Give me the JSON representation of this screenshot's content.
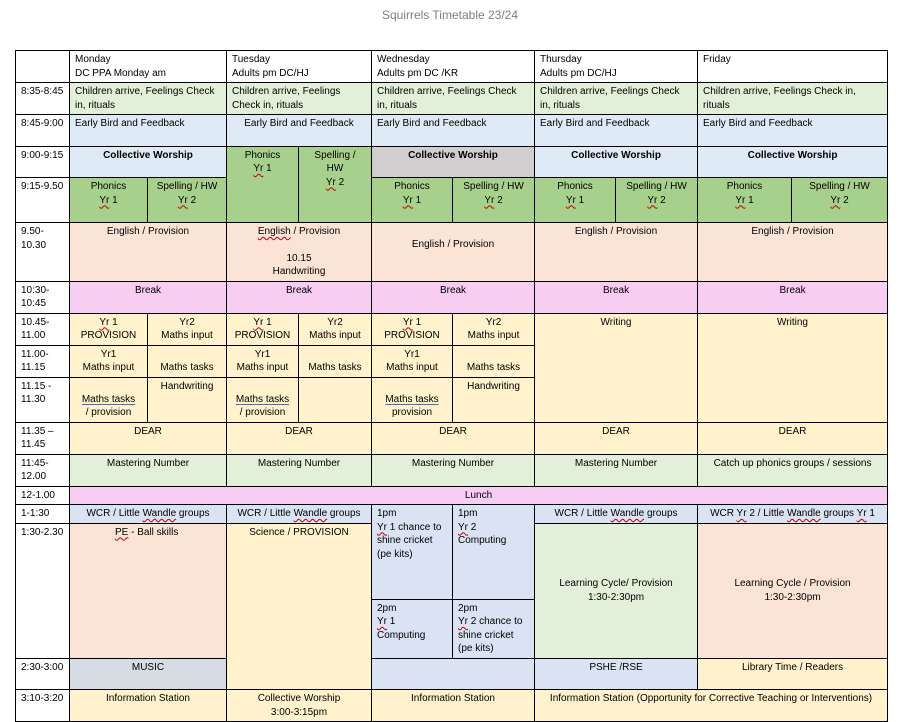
{
  "title": "Squirrels Timetable 23/24",
  "headers": {
    "mon": [
      "Monday",
      "DC PPA Monday am"
    ],
    "tue": [
      "Tuesday",
      "Adults pm DC/HJ"
    ],
    "wed": [
      "Wednesday",
      "Adults pm  DC /KR"
    ],
    "thu": [
      "Thursday",
      "Adults pm DC/HJ"
    ],
    "fri": [
      "Friday"
    ]
  },
  "times": {
    "t0835": "8:35-8:45",
    "t0845": "8:45-9:00",
    "t0900": "9:00-9:15",
    "t0915": "9:15-9.50",
    "t0950": "9.50-10.30",
    "t1030": "10:30-10:45",
    "t1045": "10.45-11.00",
    "t1100": "11.00-11.15",
    "t1115": "11.15 - 11.30",
    "t1135": "11.35 – 11.45",
    "t1145": "11:45-12.00",
    "t1200": "12-1.00",
    "t1300": "1-1:30",
    "t1330": "1:30-2.30",
    "t1430": "2:30-3:00",
    "t1510": "3:10-3:20"
  },
  "cells": {
    "arrive": "Children arrive, Feelings Check in, rituals",
    "early_bird": "Early Bird and Feedback",
    "worship": "Collective Worship",
    "phonics": "Phonics",
    "spelling_hw": "Spelling / HW",
    "spelling_split": [
      "Spelling /",
      "HW"
    ],
    "yr": "Yr",
    "one": "1",
    "two": "2",
    "english": "English / Provision",
    "english_word": "English",
    "slash_provision": " / Provision",
    "handwriting_time": "10.15",
    "handwriting": "Handwriting",
    "break": "Break",
    "provision": "PROVISION",
    "yr2": "Yr2",
    "maths_input": "Maths input",
    "yr1": "Yr1",
    "maths_tasks": "Maths tasks",
    "maths_tasks_word": "Maths tasks",
    "provision_lower": "provision",
    "slash_provision_lower": "/ provision",
    "writing": "Writing",
    "dear": "DEAR",
    "mastering": "Mastering Number",
    "catch_up": "Catch up phonics groups / sessions",
    "lunch": "Lunch",
    "wcr_pre": "WCR / Little ",
    "wandle": "Wandle",
    "groups": " groups",
    "wcr_fri_pre": "WCR ",
    "wcr_fri_mid": " 2 / Little ",
    "pe": "PE",
    "ball": " - Ball skills",
    "science": "Science / PROVISION",
    "wed_1pm": "1pm",
    "wed_cricket_mid": " 1 chance to shine cricket (pe kits)",
    "wed_2pm": "2pm",
    "computing": "Computing",
    "wed_cricket2": " 2 chance to shine cricket (pe kits)",
    "learning": "Learning Cycle/ Provision",
    "learning_fri": "Learning Cycle / Provision",
    "learning_time": "1:30-2:30pm",
    "music": "MUSIC",
    "pshe": "PSHE /RSE",
    "library": "Library Time / Readers",
    "info": "Information Station",
    "worship_pm": "Collective Worship",
    "worship_pm_time": "3:00-3:15pm",
    "info_thu_fri": "Information Station (Opportunity for Corrective Teaching or Interventions)"
  }
}
